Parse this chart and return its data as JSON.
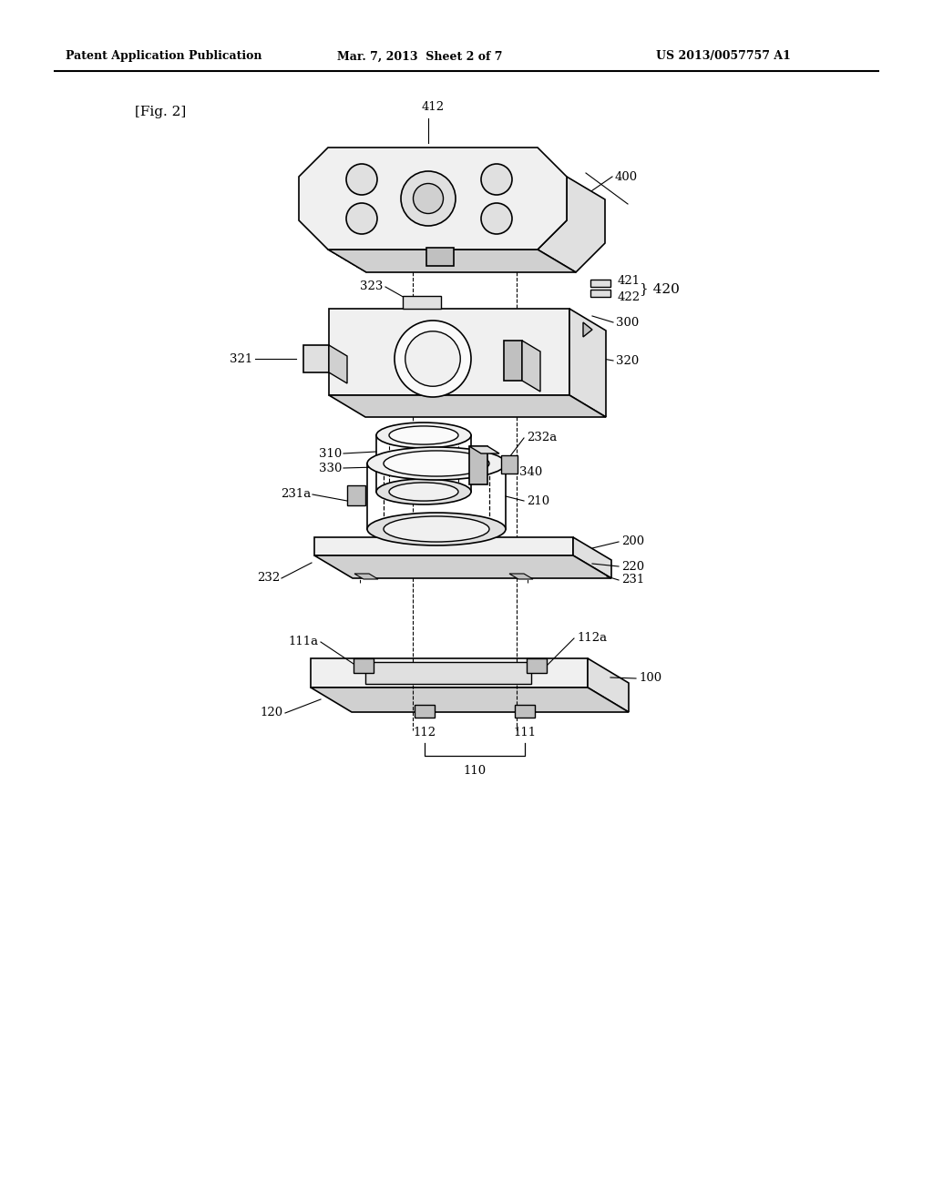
{
  "bg_color": "#ffffff",
  "header_left": "Patent Application Publication",
  "header_mid": "Mar. 7, 2013  Sheet 2 of 7",
  "header_right": "US 2013/0057757 A1",
  "fig_label": "[Fig. 2]",
  "lw_thin": 0.8,
  "lw_med": 1.2,
  "lw_thick": 1.5,
  "face_light": "#f0f0f0",
  "face_mid": "#e0e0e0",
  "face_dark": "#d0d0d0",
  "face_darker": "#c0c0c0",
  "face_white": "#fafafa"
}
